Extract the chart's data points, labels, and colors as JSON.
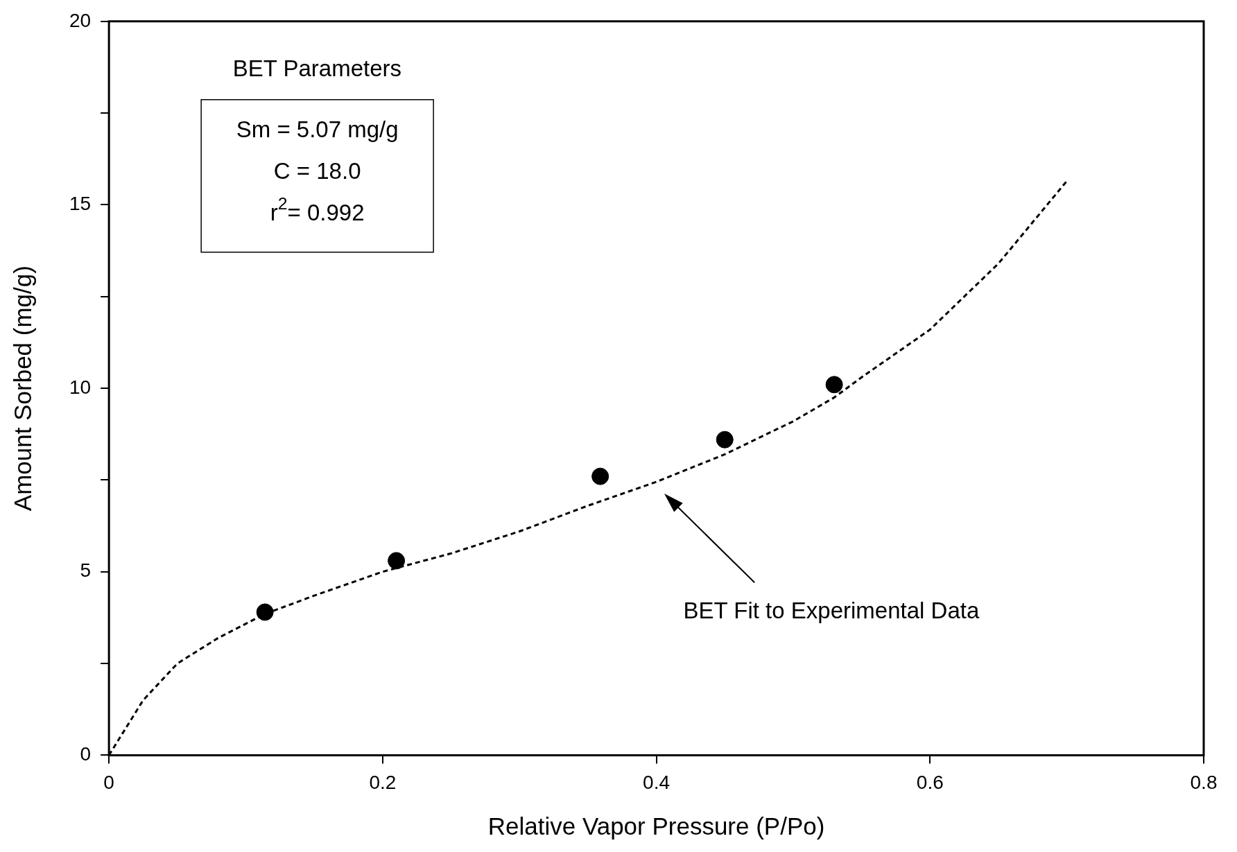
{
  "chart_data": {
    "type": "scatter",
    "xlabel": "Relative Vapor Pressure (P/Po)",
    "ylabel": "Amount Sorbed (mg/g)",
    "xlim": [
      0,
      0.8
    ],
    "ylim": [
      0,
      20
    ],
    "xticks": [
      0,
      0.2,
      0.4,
      0.6,
      0.8
    ],
    "yticks": [
      0,
      {
        "value": 2.5,
        "label": null
      },
      5,
      {
        "value": 7.5,
        "label": null
      },
      10,
      {
        "value": 12.5,
        "label": null
      },
      15,
      {
        "value": 17.5,
        "label": null
      },
      20
    ],
    "grid": false,
    "legend": false,
    "series": [
      {
        "type": "scatter",
        "color": "#000000",
        "marker": "circle",
        "x": [
          0.114,
          0.21,
          0.359,
          0.45,
          0.53
        ],
        "values": [
          3.9,
          5.3,
          7.6,
          8.6,
          10.1
        ]
      },
      {
        "type": "line",
        "color": "#000000",
        "marker": "none",
        "line_style": "dashed",
        "x": [
          0,
          0.01,
          0.025,
          0.05,
          0.08,
          0.114,
          0.15,
          0.2,
          0.25,
          0.3,
          0.35,
          0.4,
          0.45,
          0.5,
          0.53,
          0.55,
          0.6,
          0.65,
          0.7
        ],
        "values": [
          0,
          0.6,
          1.5,
          2.5,
          3.2,
          3.85,
          4.35,
          5.0,
          5.5,
          6.1,
          6.8,
          7.45,
          8.2,
          9.1,
          9.75,
          10.3,
          11.6,
          13.4,
          15.65
        ]
      }
    ],
    "annotations": [
      "BET Parameters",
      "Sm = 5.07 mg/g",
      "C = 18.0",
      "r$^{2}$= 0.992",
      "BET Fit to Experimental Data"
    ]
  }
}
